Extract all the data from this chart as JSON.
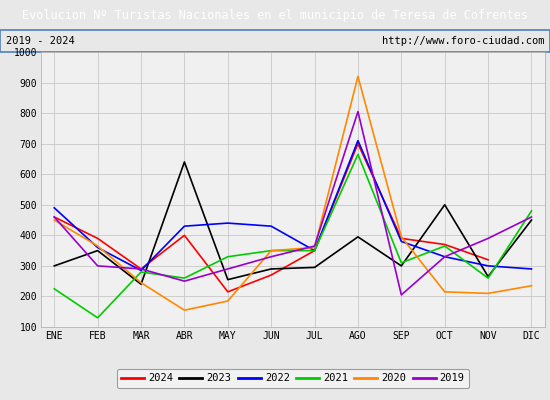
{
  "title": "Evolucion Nº Turistas Nacionales en el municipio de Teresa de Cofrentes",
  "subtitle_left": "2019 - 2024",
  "subtitle_right": "http://www.foro-ciudad.com",
  "x_labels": [
    "ENE",
    "FEB",
    "MAR",
    "ABR",
    "MAY",
    "JUN",
    "JUL",
    "AGO",
    "SEP",
    "OCT",
    "NOV",
    "DIC"
  ],
  "ylim": [
    100,
    1000
  ],
  "yticks": [
    100,
    200,
    300,
    400,
    500,
    600,
    700,
    800,
    900,
    1000
  ],
  "series": {
    "2024": {
      "color": "#ff0000",
      "values": [
        460,
        390,
        290,
        400,
        215,
        270,
        350,
        700,
        390,
        370,
        320,
        null
      ]
    },
    "2023": {
      "color": "#000000",
      "values": [
        300,
        350,
        240,
        640,
        255,
        290,
        295,
        395,
        300,
        500,
        265,
        450
      ]
    },
    "2022": {
      "color": "#0000ff",
      "values": [
        490,
        360,
        285,
        430,
        440,
        430,
        350,
        710,
        380,
        330,
        300,
        290
      ]
    },
    "2021": {
      "color": "#00cc00",
      "values": [
        225,
        130,
        280,
        260,
        330,
        350,
        350,
        665,
        310,
        365,
        260,
        480
      ]
    },
    "2020": {
      "color": "#ff8800",
      "values": [
        450,
        365,
        245,
        155,
        185,
        350,
        360,
        920,
        395,
        215,
        210,
        235
      ]
    },
    "2019": {
      "color": "#9900cc",
      "values": [
        460,
        300,
        290,
        250,
        290,
        330,
        365,
        805,
        205,
        330,
        390,
        460
      ]
    }
  },
  "legend_order": [
    "2024",
    "2023",
    "2022",
    "2021",
    "2020",
    "2019"
  ],
  "title_bg_color": "#4f81bd",
  "title_text_color": "#ffffff",
  "subtitle_bg_color": "#e8e8e8",
  "plot_bg_color": "#f0f0f0",
  "grid_color": "#c8c8c8",
  "border_color": "#4f81bd"
}
